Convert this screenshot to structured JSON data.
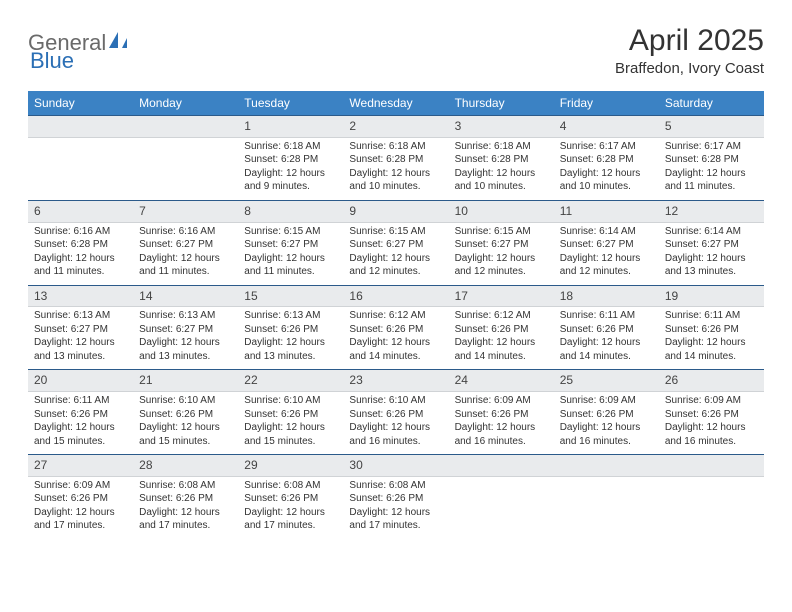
{
  "logo": {
    "text1": "General",
    "text2": "Blue"
  },
  "title": "April 2025",
  "location": "Braffedon, Ivory Coast",
  "header_bg": "#3b82c4",
  "daynum_bg": "#e9ebed",
  "border_color": "#2b5a8a",
  "dayNames": [
    "Sunday",
    "Monday",
    "Tuesday",
    "Wednesday",
    "Thursday",
    "Friday",
    "Saturday"
  ],
  "startOffset": 2,
  "daysInMonth": 30,
  "days": {
    "1": {
      "sunrise": "6:18 AM",
      "sunset": "6:28 PM",
      "daylight": "12 hours and 9 minutes."
    },
    "2": {
      "sunrise": "6:18 AM",
      "sunset": "6:28 PM",
      "daylight": "12 hours and 10 minutes."
    },
    "3": {
      "sunrise": "6:18 AM",
      "sunset": "6:28 PM",
      "daylight": "12 hours and 10 minutes."
    },
    "4": {
      "sunrise": "6:17 AM",
      "sunset": "6:28 PM",
      "daylight": "12 hours and 10 minutes."
    },
    "5": {
      "sunrise": "6:17 AM",
      "sunset": "6:28 PM",
      "daylight": "12 hours and 11 minutes."
    },
    "6": {
      "sunrise": "6:16 AM",
      "sunset": "6:28 PM",
      "daylight": "12 hours and 11 minutes."
    },
    "7": {
      "sunrise": "6:16 AM",
      "sunset": "6:27 PM",
      "daylight": "12 hours and 11 minutes."
    },
    "8": {
      "sunrise": "6:15 AM",
      "sunset": "6:27 PM",
      "daylight": "12 hours and 11 minutes."
    },
    "9": {
      "sunrise": "6:15 AM",
      "sunset": "6:27 PM",
      "daylight": "12 hours and 12 minutes."
    },
    "10": {
      "sunrise": "6:15 AM",
      "sunset": "6:27 PM",
      "daylight": "12 hours and 12 minutes."
    },
    "11": {
      "sunrise": "6:14 AM",
      "sunset": "6:27 PM",
      "daylight": "12 hours and 12 minutes."
    },
    "12": {
      "sunrise": "6:14 AM",
      "sunset": "6:27 PM",
      "daylight": "12 hours and 13 minutes."
    },
    "13": {
      "sunrise": "6:13 AM",
      "sunset": "6:27 PM",
      "daylight": "12 hours and 13 minutes."
    },
    "14": {
      "sunrise": "6:13 AM",
      "sunset": "6:27 PM",
      "daylight": "12 hours and 13 minutes."
    },
    "15": {
      "sunrise": "6:13 AM",
      "sunset": "6:26 PM",
      "daylight": "12 hours and 13 minutes."
    },
    "16": {
      "sunrise": "6:12 AM",
      "sunset": "6:26 PM",
      "daylight": "12 hours and 14 minutes."
    },
    "17": {
      "sunrise": "6:12 AM",
      "sunset": "6:26 PM",
      "daylight": "12 hours and 14 minutes."
    },
    "18": {
      "sunrise": "6:11 AM",
      "sunset": "6:26 PM",
      "daylight": "12 hours and 14 minutes."
    },
    "19": {
      "sunrise": "6:11 AM",
      "sunset": "6:26 PM",
      "daylight": "12 hours and 14 minutes."
    },
    "20": {
      "sunrise": "6:11 AM",
      "sunset": "6:26 PM",
      "daylight": "12 hours and 15 minutes."
    },
    "21": {
      "sunrise": "6:10 AM",
      "sunset": "6:26 PM",
      "daylight": "12 hours and 15 minutes."
    },
    "22": {
      "sunrise": "6:10 AM",
      "sunset": "6:26 PM",
      "daylight": "12 hours and 15 minutes."
    },
    "23": {
      "sunrise": "6:10 AM",
      "sunset": "6:26 PM",
      "daylight": "12 hours and 16 minutes."
    },
    "24": {
      "sunrise": "6:09 AM",
      "sunset": "6:26 PM",
      "daylight": "12 hours and 16 minutes."
    },
    "25": {
      "sunrise": "6:09 AM",
      "sunset": "6:26 PM",
      "daylight": "12 hours and 16 minutes."
    },
    "26": {
      "sunrise": "6:09 AM",
      "sunset": "6:26 PM",
      "daylight": "12 hours and 16 minutes."
    },
    "27": {
      "sunrise": "6:09 AM",
      "sunset": "6:26 PM",
      "daylight": "12 hours and 17 minutes."
    },
    "28": {
      "sunrise": "6:08 AM",
      "sunset": "6:26 PM",
      "daylight": "12 hours and 17 minutes."
    },
    "29": {
      "sunrise": "6:08 AM",
      "sunset": "6:26 PM",
      "daylight": "12 hours and 17 minutes."
    },
    "30": {
      "sunrise": "6:08 AM",
      "sunset": "6:26 PM",
      "daylight": "12 hours and 17 minutes."
    }
  },
  "labels": {
    "sunrise": "Sunrise:",
    "sunset": "Sunset:",
    "daylight": "Daylight:"
  }
}
